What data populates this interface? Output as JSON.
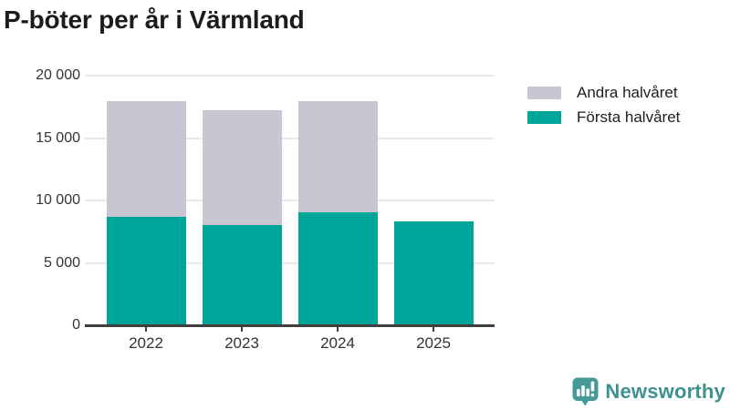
{
  "chart_data": {
    "type": "bar",
    "stacked": true,
    "title": "P-böter per år i Värmland",
    "categories": [
      "2022",
      "2023",
      "2024",
      "2025"
    ],
    "series": [
      {
        "name": "Andra halvåret",
        "color": "#c8c6d0",
        "values": [
          9250,
          9200,
          8900,
          0
        ]
      },
      {
        "name": "Första halvåret",
        "color": "#00a599",
        "values": [
          8700,
          8000,
          9050,
          8300
        ]
      }
    ],
    "ylim": [
      0,
      20000
    ],
    "yticks": [
      {
        "value": 0,
        "label": "0"
      },
      {
        "value": 5000,
        "label": "5 000"
      },
      {
        "value": 10000,
        "label": "10 000"
      },
      {
        "value": 15000,
        "label": "15 000"
      },
      {
        "value": 20000,
        "label": "20 000"
      }
    ],
    "grid": "horizontal",
    "legend_position": "top-right",
    "axis_color": "#3f3f3f",
    "grid_color": "#e9e8ea",
    "tick_label_color": "#333333"
  },
  "branding": {
    "logo_text": "Newsworthy",
    "logo_color": "#459a97",
    "logo_icon": "newsworthy-speech-bubble-barchart-icon"
  }
}
